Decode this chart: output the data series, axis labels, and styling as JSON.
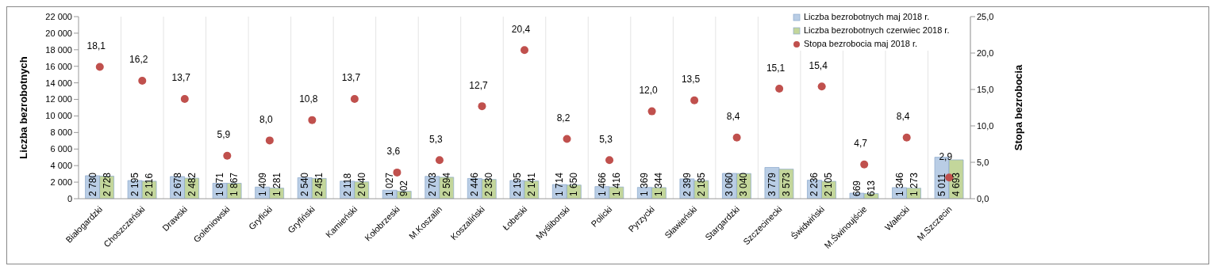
{
  "chart_data": {
    "type": "bar",
    "categories": [
      "Białogardzki",
      "Choszczeński",
      "Drawski",
      "Goleniowski",
      "Gryficki",
      "Gryfiński",
      "Kamieński",
      "Kołobrzeski",
      "M.Koszalin",
      "Koszaliński",
      "Łobeski",
      "Myśliborski",
      "Policki",
      "Pyrzycki",
      "Sławieński",
      "Stargardzki",
      "Szczecinecki",
      "Świdwiński",
      "M.Świnoujście",
      "Wałecki",
      "M.Szczecin"
    ],
    "series": [
      {
        "name": "Liczba bezrobotnych maj 2018 r.",
        "color": "#b9cde5",
        "values": [
          2780,
          2195,
          2678,
          1871,
          1409,
          2540,
          2118,
          1027,
          2703,
          2446,
          2195,
          1714,
          1466,
          1369,
          2399,
          3060,
          3779,
          2236,
          669,
          1346,
          5011
        ],
        "value_labels": [
          "2 780",
          "2 195",
          "2 678",
          "1 871",
          "1 409",
          "2 540",
          "2 118",
          "1 027",
          "2 703",
          "2 446",
          "2 195",
          "1 714",
          "1 466",
          "1 369",
          "2 399",
          "3 060",
          "3 779",
          "2 236",
          "669",
          "1 346",
          "5 011"
        ]
      },
      {
        "name": "Liczba bezrobotnych czerwiec 2018 r.",
        "color": "#c3d69b",
        "values": [
          2728,
          2116,
          2482,
          1867,
          1281,
          2451,
          2040,
          902,
          2594,
          2330,
          2141,
          1650,
          1416,
          1344,
          2185,
          3040,
          3573,
          2105,
          613,
          1273,
          4693
        ],
        "value_labels": [
          "2 728",
          "2 116",
          "2 482",
          "1 867",
          "1 281",
          "2 451",
          "2 040",
          "902",
          "2 594",
          "2 330",
          "2 141",
          "1 650",
          "1 416",
          "1 344",
          "2 185",
          "3 040",
          "3 573",
          "2 105",
          "613",
          "1 273",
          "4 693"
        ]
      },
      {
        "name": "Stopa bezrobocia maj 2018 r.",
        "type": "scatter",
        "axis": "y2",
        "color": "#c0504d",
        "marker": "circle",
        "values": [
          18.1,
          16.2,
          13.7,
          5.9,
          8.0,
          10.8,
          13.7,
          3.6,
          5.3,
          12.7,
          20.4,
          8.2,
          5.3,
          12.0,
          13.5,
          8.4,
          15.1,
          15.4,
          4.7,
          8.4,
          2.9
        ],
        "value_labels": [
          "18,1",
          "16,2",
          "13,7",
          "5,9",
          "8,0",
          "10,8",
          "13,7",
          "3,6",
          "5,3",
          "12,7",
          "20,4",
          "8,2",
          "5,3",
          "12,0",
          "13,5",
          "8,4",
          "15,1",
          "15,4",
          "4,7",
          "8,4",
          "2,9"
        ]
      }
    ],
    "ylabel": "Liczba bezrobotnych",
    "y2label": "Stopa bezrobocia",
    "ylim": [
      0,
      22000
    ],
    "yticks": [
      {
        "value": 0,
        "label": "0"
      },
      {
        "value": 2000,
        "label": "2 000"
      },
      {
        "value": 4000,
        "label": "4 000"
      },
      {
        "value": 6000,
        "label": "6 000"
      },
      {
        "value": 8000,
        "label": "8 000"
      },
      {
        "value": 10000,
        "label": "10 000"
      },
      {
        "value": 12000,
        "label": "12 000"
      },
      {
        "value": 14000,
        "label": "14 000"
      },
      {
        "value": 16000,
        "label": "16 000"
      },
      {
        "value": 18000,
        "label": "18 000"
      },
      {
        "value": 20000,
        "label": "20 000"
      },
      {
        "value": 22000,
        "label": "22 000"
      }
    ],
    "y2lim": [
      0,
      25
    ],
    "y2ticks": [
      {
        "value": 0,
        "label": "0,0"
      },
      {
        "value": 5,
        "label": "5,0"
      },
      {
        "value": 10,
        "label": "10,0"
      },
      {
        "value": 15,
        "label": "15,0"
      },
      {
        "value": 20,
        "label": "20,0"
      },
      {
        "value": 25,
        "label": "25,0"
      }
    ],
    "grid": "x",
    "legend": "top right"
  }
}
